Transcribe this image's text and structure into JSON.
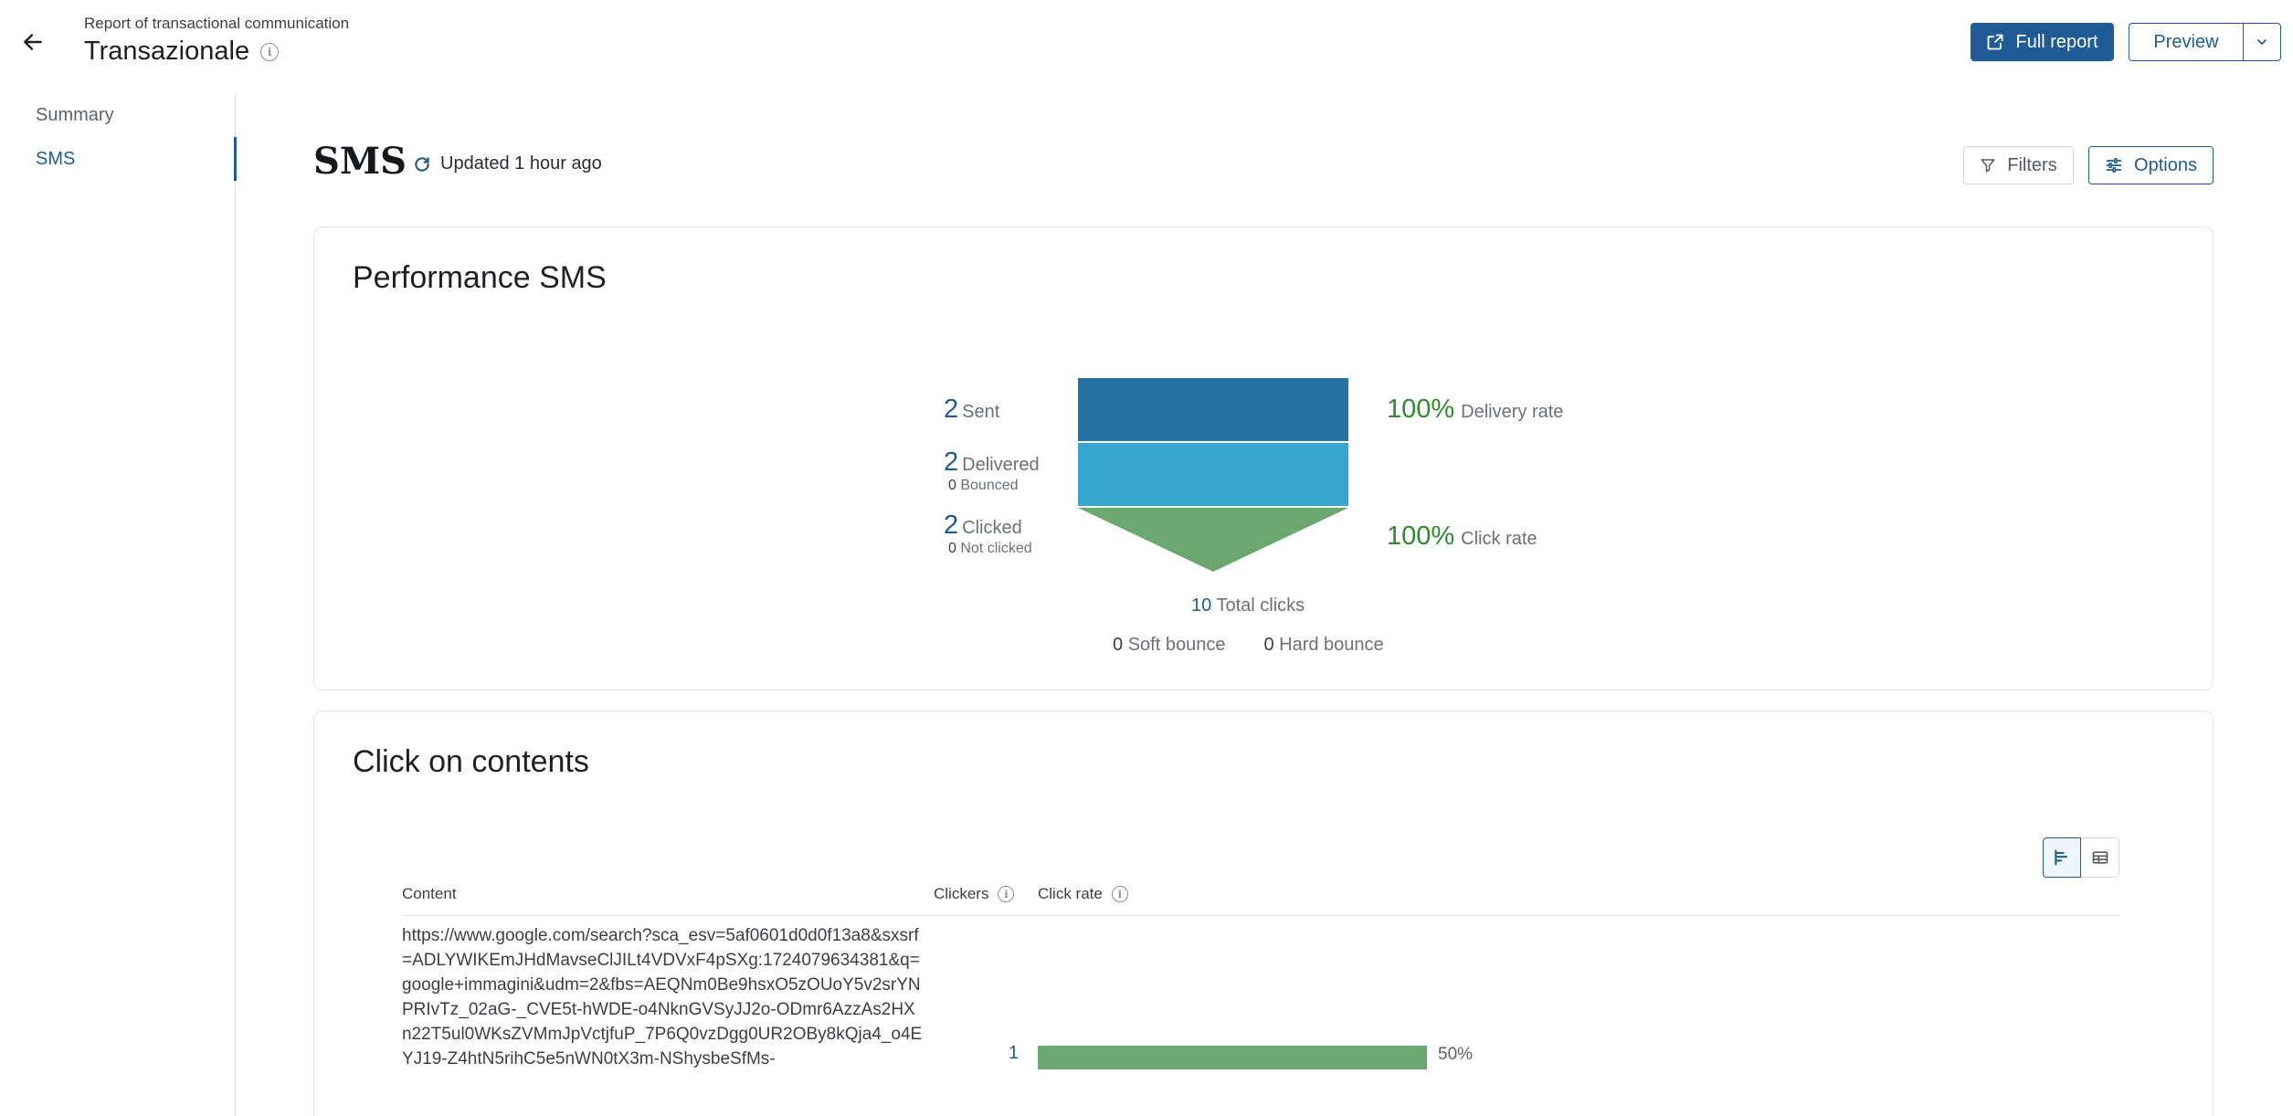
{
  "header": {
    "subtitle": "Report of transactional communication",
    "title": "Transazionale",
    "full_report_label": "Full report",
    "preview_label": "Preview"
  },
  "sidebar": {
    "items": [
      {
        "label": "Summary",
        "active": false
      },
      {
        "label": "SMS",
        "active": true
      }
    ]
  },
  "section": {
    "title": "SMS",
    "updated": "Updated 1 hour ago",
    "filters_label": "Filters",
    "options_label": "Options"
  },
  "performance": {
    "title": "Performance SMS",
    "sent": {
      "value": "2",
      "label": "Sent"
    },
    "delivered": {
      "value": "2",
      "label": "Delivered",
      "sub_value": "0",
      "sub_label": "Bounced"
    },
    "clicked": {
      "value": "2",
      "label": "Clicked",
      "sub_value": "0",
      "sub_label": "Not clicked"
    },
    "delivery_rate": {
      "value": "100%",
      "label": "Delivery rate"
    },
    "click_rate": {
      "value": "100%",
      "label": "Click rate"
    },
    "total_clicks": {
      "value": "10",
      "label": "Total clicks"
    },
    "soft_bounce": {
      "value": "0",
      "label": "Soft bounce"
    },
    "hard_bounce": {
      "value": "0",
      "label": "Hard bounce"
    },
    "colors": {
      "sent": "#23729f",
      "delivered": "#36a5cf",
      "clicked": "#6aa86f",
      "accent": "#1f5b96",
      "rate": "#2e8b2e"
    }
  },
  "clicks": {
    "title": "Click on contents",
    "columns": {
      "content": "Content",
      "clickers": "Clickers",
      "click_rate": "Click rate"
    },
    "rows": [
      {
        "content": "https://www.google.com/search?sca_esv=5af0601d0d0f13a8&sxsrf=ADLYWIKEmJHdMavseClJILt4VDVxF4pSXg:1724079634381&q=google+immagini&udm=2&fbs=AEQNm0Be9hsxO5zOUoY5v2srYNPRIvTz_02aG-_CVE5t-hWDE-o4NknGVSyJJ2o-ODmr6AzzAs2HXn22T5ul0WKsZVMmJpVctjfuP_7P6Q0vzDgg0UR2OBy8kQja4_o4EYJ19-Z4htN5rihC5e5nWN0tX3m-NShysbeSfMs-",
        "clickers": "1",
        "click_rate_label": "50%",
        "click_rate": 0.5
      }
    ]
  }
}
